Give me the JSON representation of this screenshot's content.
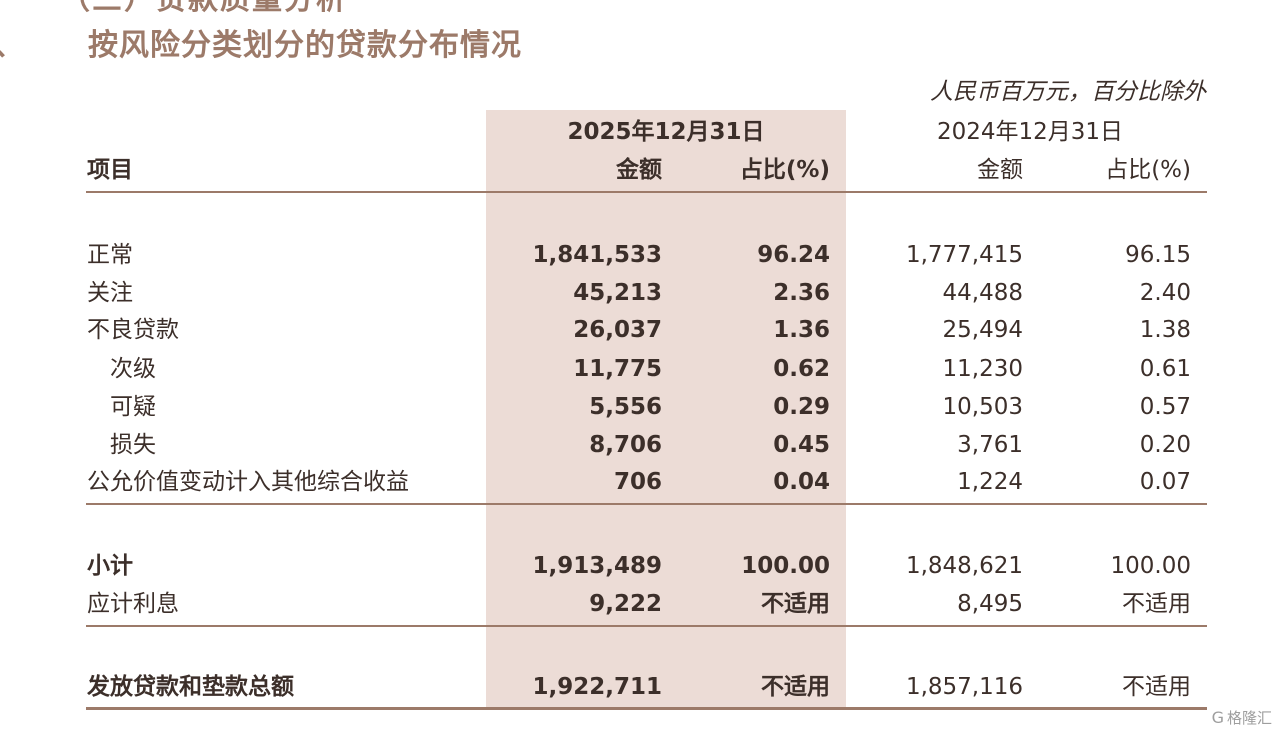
{
  "top_heading_partial": "（三）贷款质量分析",
  "section_marker": "、",
  "section_title": "按风险分类划分的贷款分布情况",
  "unit_note": "人民币百万元，百分比除外",
  "headers": {
    "item": "项目",
    "period_2025": "2025年12月31日",
    "period_2024": "2024年12月31日",
    "amount": "金额",
    "ratio": "占比(%)"
  },
  "rows": [
    {
      "label": "正常",
      "a25": "1,841,533",
      "p25": "96.24",
      "a24": "1,777,415",
      "p24": "96.15"
    },
    {
      "label": "关注",
      "a25": "45,213",
      "p25": "2.36",
      "a24": "44,488",
      "p24": "2.40"
    },
    {
      "label": "不良贷款",
      "a25": "26,037",
      "p25": "1.36",
      "a24": "25,494",
      "p24": "1.38"
    },
    {
      "label": "次级",
      "a25": "11,775",
      "p25": "0.62",
      "a24": "11,230",
      "p24": "0.61"
    },
    {
      "label": "可疑",
      "a25": "5,556",
      "p25": "0.29",
      "a24": "10,503",
      "p24": "0.57"
    },
    {
      "label": "损失",
      "a25": "8,706",
      "p25": "0.45",
      "a24": "3,761",
      "p24": "0.20"
    },
    {
      "label": "公允价值变动计入其他综合收益",
      "a25": "706",
      "p25": "0.04",
      "a24": "1,224",
      "p24": "0.07"
    },
    {
      "label": "小计",
      "a25": "1,913,489",
      "p25": "100.00",
      "a24": "1,848,621",
      "p24": "100.00"
    },
    {
      "label": "应计利息",
      "a25": "9,222",
      "p25": "不适用",
      "a24": "8,495",
      "p24": "不适用"
    },
    {
      "label": "发放贷款和垫款总额",
      "a25": "1,922,711",
      "p25": "不适用",
      "a24": "1,857,116",
      "p24": "不适用"
    }
  ],
  "watermark": "格隆汇",
  "watermark_icon": "G",
  "colors": {
    "accent": "#9c7a69",
    "shade": "#ecdcd6",
    "text": "#3c2f2a"
  }
}
